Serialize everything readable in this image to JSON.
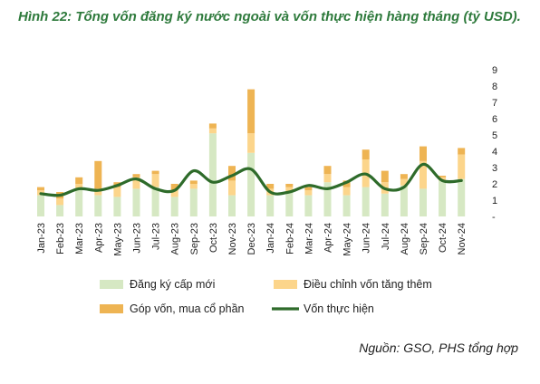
{
  "title": "Hình 22: Tổng vốn đăng ký nước ngoài và vốn thực hiện hàng tháng (tỷ USD).",
  "source": "Nguồn: GSO, PHS tổng hợp",
  "colors": {
    "new_registration": "#d6e8c3",
    "adjusted": "#fcd58b",
    "share_purchase": "#eeb453",
    "disbursed": "#2e6b2a",
    "title": "#2e7a3c"
  },
  "chart_data": {
    "type": "bar",
    "stacked": true,
    "categories": [
      "Jan-23",
      "Feb-23",
      "Mar-23",
      "Apr-23",
      "May-23",
      "Jun-23",
      "Jul-23",
      "Aug-23",
      "Sep-23",
      "Oct-23",
      "Nov-23",
      "Dec-23",
      "Jan-24",
      "Feb-24",
      "Mar-24",
      "Apr-24",
      "May-24",
      "Jun-24",
      "Jul-24",
      "Aug-24",
      "Sep-24",
      "Oct-24",
      "Nov-24"
    ],
    "series": [
      {
        "name": "Đăng ký cấp mới",
        "type": "bar",
        "values": [
          1.3,
          0.7,
          1.7,
          1.3,
          1.2,
          1.7,
          1.8,
          1.2,
          1.7,
          5.1,
          1.3,
          3.9,
          1.3,
          1.5,
          1.3,
          2.1,
          1.3,
          1.8,
          1.4,
          1.9,
          1.7,
          2.2,
          2.3
        ]
      },
      {
        "name": "Điều chỉnh vốn tăng thêm",
        "type": "bar",
        "values": [
          0.3,
          0.4,
          0.3,
          0.4,
          0.6,
          0.7,
          0.8,
          0.4,
          0.3,
          0.3,
          0.9,
          1.2,
          0.4,
          0.3,
          0.3,
          0.5,
          0.5,
          1.7,
          0.7,
          0.4,
          1.7,
          0.2,
          1.5
        ]
      },
      {
        "name": "Góp vốn, mua cổ phần",
        "type": "bar",
        "values": [
          0.2,
          0.4,
          0.4,
          1.7,
          0.3,
          0.2,
          0.2,
          0.4,
          0.2,
          0.3,
          0.9,
          2.7,
          0.3,
          0.2,
          0.2,
          0.5,
          0.4,
          0.6,
          0.7,
          0.3,
          0.9,
          0.1,
          0.4
        ]
      },
      {
        "name": "Vốn thực hiện",
        "type": "line",
        "values": [
          1.4,
          1.3,
          1.7,
          1.6,
          1.9,
          2.3,
          1.7,
          1.6,
          2.8,
          2.1,
          2.5,
          2.9,
          1.5,
          1.5,
          1.9,
          1.7,
          2.1,
          2.6,
          1.7,
          1.8,
          3.2,
          2.2,
          2.2
        ]
      }
    ],
    "ylim": [
      0,
      9
    ],
    "yticks": [
      "-",
      "1",
      "2",
      "3",
      "4",
      "5",
      "6",
      "7",
      "8",
      "9"
    ],
    "yaxis_position": "right",
    "grid": false,
    "legend_position": "bottom"
  }
}
